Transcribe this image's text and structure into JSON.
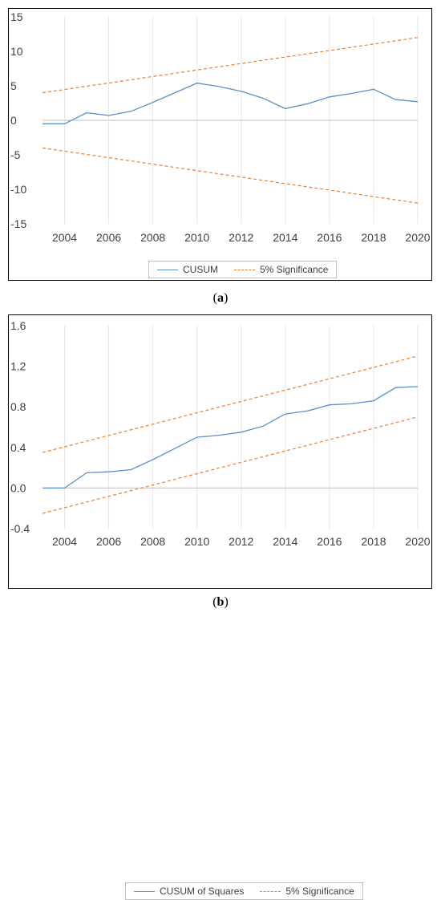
{
  "colors": {
    "cusum": "#5b8fc9",
    "significance": "#ed7d31",
    "axis": "#bfbfbf",
    "grid": "#e6e6e6",
    "tick_text": "#404040"
  },
  "chart_data": [
    {
      "type": "line",
      "panel_label": "a",
      "x_ticks": [
        "2004",
        "2006",
        "2008",
        "2010",
        "2012",
        "2014",
        "2016",
        "2018",
        "2020"
      ],
      "y_ticks": [
        "15",
        "10",
        "5",
        "0",
        "-5",
        "-10",
        "-15"
      ],
      "y_tick_values": [
        15,
        10,
        5,
        0,
        -5,
        -10,
        -15
      ],
      "xlim": [
        2003,
        2020
      ],
      "ylim": [
        -15,
        15
      ],
      "grid": "vertical",
      "legend_position": "bottom",
      "series": [
        {
          "name": "CUSUM",
          "x": [
            2003,
            2004,
            2005,
            2006,
            2007,
            2008,
            2009,
            2010,
            2011,
            2012,
            2013,
            2014,
            2015,
            2016,
            2017,
            2018,
            2019,
            2020
          ],
          "y": [
            -0.5,
            -0.5,
            1.1,
            0.7,
            1.3,
            2.6,
            4.0,
            5.4,
            4.9,
            4.2,
            3.2,
            1.7,
            2.4,
            3.4,
            3.9,
            4.5,
            3.0,
            2.7
          ]
        },
        {
          "name": "5% Significance",
          "x": [
            2003,
            2020
          ],
          "y": [
            4.0,
            12.0
          ]
        },
        {
          "name": "5% Significance",
          "x": [
            2003,
            2020
          ],
          "y": [
            -4.0,
            -12.0
          ]
        }
      ],
      "legend": [
        "CUSUM",
        "5% Significance"
      ]
    },
    {
      "type": "line",
      "panel_label": "b",
      "x_ticks": [
        "2004",
        "2006",
        "2008",
        "2010",
        "2012",
        "2014",
        "2016",
        "2018",
        "2020"
      ],
      "y_ticks": [
        "1.6",
        "1.2",
        "0.8",
        "0.4",
        "0.0",
        "-0.4"
      ],
      "y_tick_values": [
        1.6,
        1.2,
        0.8,
        0.4,
        0.0,
        -0.4
      ],
      "xlim": [
        2003,
        2020
      ],
      "ylim": [
        -0.4,
        1.6
      ],
      "grid": "vertical",
      "legend_position": "bottom",
      "series": [
        {
          "name": "CUSUM of Squares",
          "x": [
            2003,
            2004,
            2005,
            2006,
            2007,
            2008,
            2009,
            2010,
            2011,
            2012,
            2013,
            2014,
            2015,
            2016,
            2017,
            2018,
            2019,
            2020
          ],
          "y": [
            0.0,
            0.0,
            0.15,
            0.16,
            0.18,
            0.28,
            0.39,
            0.5,
            0.52,
            0.55,
            0.61,
            0.73,
            0.76,
            0.82,
            0.83,
            0.86,
            0.99,
            1.0
          ]
        },
        {
          "name": "5% Significance",
          "x": [
            2003,
            2020
          ],
          "y": [
            0.35,
            1.3
          ]
        },
        {
          "name": "5% Significance",
          "x": [
            2003,
            2020
          ],
          "y": [
            -0.25,
            0.7
          ]
        }
      ],
      "legend": [
        "CUSUM of Squares",
        "5% Significance"
      ]
    }
  ],
  "captions": {
    "a": "a",
    "b": "b"
  }
}
